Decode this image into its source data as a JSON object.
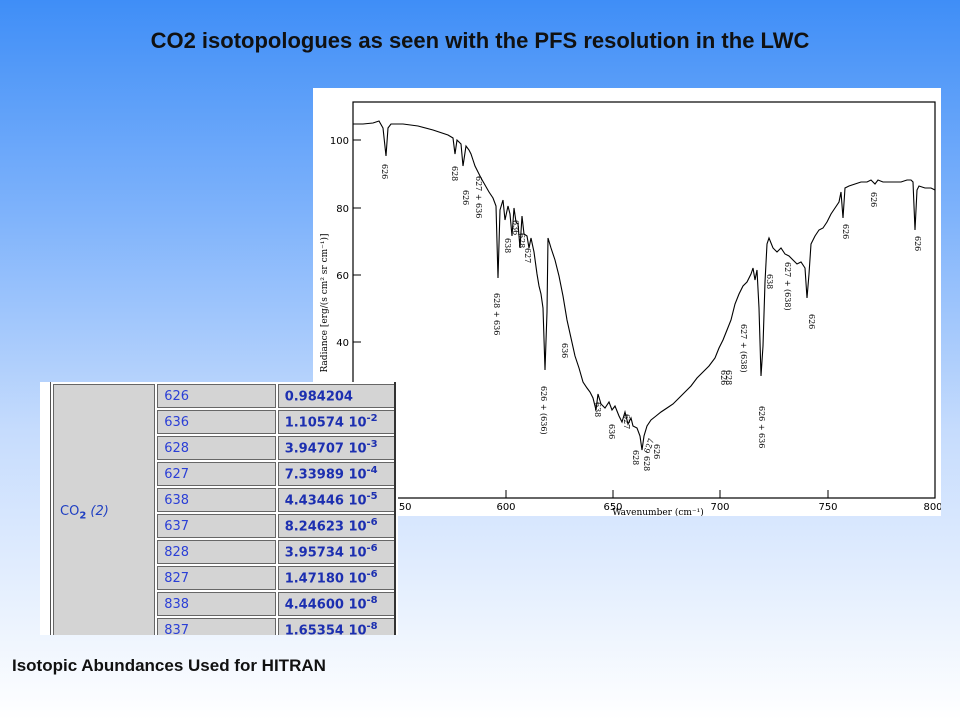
{
  "title": "CO2 isotopologues as seen with the PFS resolution in the LWC",
  "caption": "Isotopic Abundances Used for HITRAN",
  "spectrum": {
    "y_axis_label": "Radiance [erg/(s cm² sr cm⁻¹)]",
    "x_axis_label": "Wavenumber (cm⁻¹)",
    "y_ticks": [
      "100",
      "80",
      "60",
      "40"
    ],
    "x_ticks": [
      "550",
      "600",
      "650",
      "700",
      "750",
      "800"
    ],
    "band_labels": [
      "626",
      "628",
      "626",
      "627 + 636",
      "636",
      "638",
      "627",
      "628",
      "628 + 636",
      "626 + (636)",
      "636",
      "638",
      "636",
      "627",
      "628",
      "626",
      "628",
      "627",
      "626",
      "628",
      "627 + (638)",
      "626 + 636",
      "638",
      "627 + (638)",
      "626",
      "626",
      "626",
      "626"
    ]
  },
  "table": {
    "molecule": "CO",
    "molecule_sub": "2",
    "molecule_index": "(2)",
    "rows": [
      {
        "iso": "626",
        "mant": "0.984204",
        "exp": ""
      },
      {
        "iso": "636",
        "mant": "1.10574 10",
        "exp": "-2"
      },
      {
        "iso": "628",
        "mant": "3.94707 10",
        "exp": "-3"
      },
      {
        "iso": "627",
        "mant": "7.33989 10",
        "exp": "-4"
      },
      {
        "iso": "638",
        "mant": "4.43446 10",
        "exp": "-5"
      },
      {
        "iso": "637",
        "mant": "8.24623 10",
        "exp": "-6"
      },
      {
        "iso": "828",
        "mant": "3.95734 10",
        "exp": "-6"
      },
      {
        "iso": "827",
        "mant": "1.47180 10",
        "exp": "-6"
      },
      {
        "iso": "838",
        "mant": "4.44600 10",
        "exp": "-8"
      },
      {
        "iso": "837",
        "mant": "1.65354 10",
        "exp": "-8"
      }
    ]
  }
}
